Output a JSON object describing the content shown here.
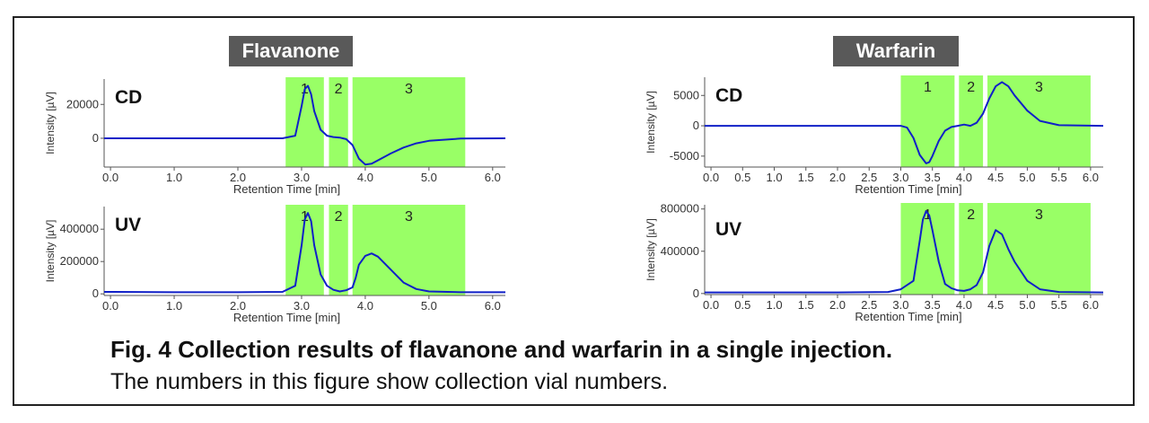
{
  "figure": {
    "caption_title": "Fig. 4  Collection results of flavanone and warfarin in  a single injection.",
    "caption_subtitle": "The numbers in this figure show collection vial numbers."
  },
  "colors": {
    "trace": "#1020c8",
    "band": "#99ff66",
    "title_bg": "#595959"
  },
  "chart_data": [
    {
      "type": "line",
      "panel_title": "Flavanone",
      "trace_label": "CD",
      "ylabel": "Intensity [µV]",
      "xlabel": "Retention Time [min]",
      "xlim": [
        -0.1,
        6.2
      ],
      "ylim": [
        -17000,
        35000
      ],
      "x_ticks": [
        0.0,
        1.0,
        2.0,
        3.0,
        4.0,
        5.0,
        6.0
      ],
      "x_tick_labels": [
        "0.0",
        "1.0",
        "2.0",
        "3.0",
        "4.0",
        "5.0",
        "6.0"
      ],
      "y_ticks": [
        0,
        20000
      ],
      "y_tick_labels": [
        "0",
        "20000"
      ],
      "bands": [
        {
          "label": "1",
          "x0": 2.75,
          "x1": 3.35
        },
        {
          "label": "2",
          "x0": 3.43,
          "x1": 3.73
        },
        {
          "label": "3",
          "x0": 3.8,
          "x1": 5.57
        }
      ],
      "x": [
        -0.1,
        1.0,
        2.0,
        2.7,
        2.9,
        3.0,
        3.05,
        3.1,
        3.15,
        3.2,
        3.3,
        3.4,
        3.5,
        3.6,
        3.7,
        3.8,
        3.9,
        4.0,
        4.1,
        4.2,
        4.4,
        4.6,
        4.8,
        5.0,
        5.5,
        6.2
      ],
      "values": [
        0,
        0,
        0,
        0,
        1500,
        19000,
        29000,
        31000,
        26000,
        16000,
        5000,
        1500,
        700,
        400,
        -500,
        -4000,
        -12000,
        -15500,
        -15000,
        -13000,
        -9000,
        -5500,
        -3000,
        -1500,
        -200,
        0
      ]
    },
    {
      "type": "line",
      "panel_title": "",
      "trace_label": "UV",
      "ylabel": "Intensity [µV]",
      "xlabel": "Retention Time [min]",
      "xlim": [
        -0.1,
        6.2
      ],
      "ylim": [
        -10000,
        540000
      ],
      "x_ticks": [
        0.0,
        1.0,
        2.0,
        3.0,
        4.0,
        5.0,
        6.0
      ],
      "x_tick_labels": [
        "0.0",
        "1.0",
        "2.0",
        "3.0",
        "4.0",
        "5.0",
        "6.0"
      ],
      "y_ticks": [
        0,
        200000,
        400000
      ],
      "y_tick_labels": [
        "0",
        "200000",
        "400000"
      ],
      "bands": [
        {
          "label": "1",
          "x0": 2.75,
          "x1": 3.35
        },
        {
          "label": "2",
          "x0": 3.43,
          "x1": 3.73
        },
        {
          "label": "3",
          "x0": 3.8,
          "x1": 5.57
        }
      ],
      "x": [
        -0.1,
        1.0,
        2.0,
        2.7,
        2.9,
        3.0,
        3.05,
        3.1,
        3.15,
        3.2,
        3.3,
        3.4,
        3.5,
        3.6,
        3.7,
        3.8,
        3.85,
        3.9,
        4.0,
        4.1,
        4.2,
        4.4,
        4.6,
        4.8,
        5.0,
        5.5,
        6.2
      ],
      "values": [
        12000,
        10000,
        10000,
        12000,
        50000,
        300000,
        460000,
        500000,
        450000,
        300000,
        120000,
        50000,
        25000,
        15000,
        22000,
        40000,
        100000,
        180000,
        235000,
        250000,
        230000,
        150000,
        70000,
        30000,
        15000,
        10000,
        10000
      ]
    },
    {
      "type": "line",
      "panel_title": "Warfarin",
      "trace_label": "CD",
      "ylabel": "Intensity [µV]",
      "xlabel": "Retention Time [min]",
      "xlim": [
        -0.1,
        6.2
      ],
      "ylim": [
        -6800,
        8000
      ],
      "x_ticks": [
        0.0,
        0.5,
        1.0,
        1.5,
        2.0,
        2.5,
        3.0,
        3.5,
        4.0,
        4.5,
        5.0,
        5.5,
        6.0
      ],
      "x_tick_labels": [
        "0.0",
        "0.5",
        "1.0",
        "1.5",
        "2.0",
        "2.5",
        "3.0",
        "3.5",
        "4.0",
        "4.5",
        "5.0",
        "5.5",
        "6.0"
      ],
      "y_ticks": [
        -5000,
        0,
        5000
      ],
      "y_tick_labels": [
        "-5000",
        "0",
        "5000"
      ],
      "bands": [
        {
          "label": "1",
          "x0": 3.0,
          "x1": 3.85
        },
        {
          "label": "2",
          "x0": 3.92,
          "x1": 4.3
        },
        {
          "label": "3",
          "x0": 4.37,
          "x1": 6.0
        }
      ],
      "x": [
        -0.1,
        0.5,
        1.0,
        2.0,
        3.0,
        3.1,
        3.2,
        3.3,
        3.4,
        3.45,
        3.5,
        3.6,
        3.7,
        3.8,
        3.9,
        4.0,
        4.1,
        4.2,
        4.3,
        4.4,
        4.5,
        4.6,
        4.7,
        4.8,
        5.0,
        5.2,
        5.5,
        6.2
      ],
      "values": [
        0,
        0,
        0,
        0,
        0,
        -300,
        -2000,
        -4800,
        -6200,
        -6000,
        -5000,
        -2500,
        -800,
        -200,
        0,
        200,
        0,
        500,
        2000,
        4500,
        6500,
        7200,
        6500,
        5000,
        2500,
        800,
        100,
        0
      ]
    },
    {
      "type": "line",
      "panel_title": "",
      "trace_label": "UV",
      "ylabel": "Intensity [µV]",
      "xlabel": "Retention Time [min]",
      "xlim": [
        -0.1,
        6.2
      ],
      "ylim": [
        -10000,
        840000
      ],
      "x_ticks": [
        0.0,
        0.5,
        1.0,
        1.5,
        2.0,
        2.5,
        3.0,
        3.5,
        4.0,
        4.5,
        5.0,
        5.5,
        6.0
      ],
      "x_tick_labels": [
        "0.0",
        "0.5",
        "1.0",
        "1.5",
        "2.0",
        "2.5",
        "3.0",
        "3.5",
        "4.0",
        "4.5",
        "5.0",
        "5.5",
        "6.0"
      ],
      "y_ticks": [
        0,
        400000,
        800000
      ],
      "y_tick_labels": [
        "0",
        "400000",
        "800000"
      ],
      "bands": [
        {
          "label": "1",
          "x0": 3.0,
          "x1": 3.85
        },
        {
          "label": "2",
          "x0": 3.92,
          "x1": 4.3
        },
        {
          "label": "3",
          "x0": 4.37,
          "x1": 6.0
        }
      ],
      "x": [
        -0.1,
        1.0,
        2.0,
        2.8,
        3.0,
        3.2,
        3.3,
        3.35,
        3.4,
        3.45,
        3.5,
        3.6,
        3.7,
        3.8,
        3.9,
        4.0,
        4.1,
        4.2,
        4.3,
        4.4,
        4.5,
        4.6,
        4.7,
        4.8,
        5.0,
        5.2,
        5.5,
        6.2
      ],
      "values": [
        10000,
        10000,
        10000,
        15000,
        40000,
        120000,
        500000,
        700000,
        780000,
        740000,
        600000,
        300000,
        90000,
        50000,
        30000,
        25000,
        40000,
        80000,
        200000,
        450000,
        600000,
        560000,
        420000,
        300000,
        120000,
        40000,
        15000,
        10000
      ]
    }
  ]
}
